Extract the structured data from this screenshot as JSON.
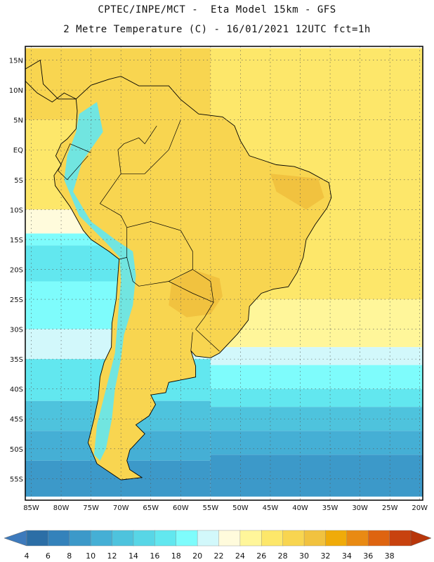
{
  "header": {
    "line1": "CPTEC/INPE/MCT -  Eta Model 15km - GFS",
    "line2": "2 Metre Temperature (C) - 16/01/2021 12UTC fct=1h"
  },
  "map": {
    "lat_labels": [
      "15N",
      "10N",
      "5N",
      "EQ",
      "5S",
      "10S",
      "15S",
      "20S",
      "25S",
      "30S",
      "35S",
      "40S",
      "45S",
      "50S",
      "55S"
    ],
    "lon_labels": [
      "85W",
      "80W",
      "75W",
      "70W",
      "65W",
      "60W",
      "55W",
      "50W",
      "45W",
      "40W",
      "35W",
      "30W",
      "25W",
      "20W"
    ],
    "lat_values": [
      15,
      10,
      5,
      0,
      -5,
      -10,
      -15,
      -20,
      -25,
      -30,
      -35,
      -40,
      -45,
      -50,
      -55
    ],
    "lon_values": [
      -85,
      -80,
      -75,
      -70,
      -65,
      -60,
      -55,
      -50,
      -45,
      -40,
      -35,
      -30,
      -25,
      -20
    ],
    "grid": "dotted",
    "ocean_bands": [
      {
        "from_lat": 17,
        "to_lat": 5,
        "temp": 28
      },
      {
        "from_lat": 5,
        "to_lat": -10,
        "temp": 26
      },
      {
        "from_lat": -10,
        "to_lat": -14,
        "temp": 22
      },
      {
        "from_lat": -14,
        "to_lat": -16,
        "temp": 18
      },
      {
        "from_lat": -16,
        "to_lat": -22,
        "temp": 16
      },
      {
        "from_lat": -22,
        "to_lat": -30,
        "temp": 18
      },
      {
        "from_lat": -30,
        "to_lat": -35,
        "temp": 20
      },
      {
        "from_lat": -35,
        "to_lat": -42,
        "temp": 16
      },
      {
        "from_lat": -42,
        "to_lat": -47,
        "temp": 12
      },
      {
        "from_lat": -47,
        "to_lat": -52,
        "temp": 10
      },
      {
        "from_lat": -52,
        "to_lat": -58,
        "temp": 8
      }
    ],
    "atlantic_bands": [
      {
        "from_lat": 17,
        "to_lat": -25,
        "temp": 26
      },
      {
        "from_lat": -25,
        "to_lat": -33,
        "temp": 24
      },
      {
        "from_lat": -33,
        "to_lat": -36,
        "temp": 20
      },
      {
        "from_lat": -36,
        "to_lat": -40,
        "temp": 18
      },
      {
        "from_lat": -40,
        "to_lat": -43,
        "temp": 16
      },
      {
        "from_lat": -43,
        "to_lat": -47,
        "temp": 12
      },
      {
        "from_lat": -47,
        "to_lat": -51,
        "temp": 10
      },
      {
        "from_lat": -51,
        "to_lat": -58,
        "temp": 8
      }
    ],
    "land_temp": 28,
    "hot_temp": 30,
    "andes_temp": 16
  },
  "colorbar": {
    "labels": [
      "4",
      "6",
      "8",
      "10",
      "12",
      "14",
      "16",
      "18",
      "20",
      "22",
      "24",
      "26",
      "28",
      "30",
      "32",
      "34",
      "36",
      "38"
    ],
    "colors": [
      "#2c6ea6",
      "#3482bb",
      "#3c99c9",
      "#45afd5",
      "#4ec3dd",
      "#58d6e6",
      "#62e7ef",
      "#7efcfc",
      "#d2f8fb",
      "#fffbdc",
      "#fff69a",
      "#fde76a",
      "#f8d550",
      "#f1c23f",
      "#f0ab09",
      "#e98a13",
      "#de6410",
      "#c8420e"
    ],
    "low_color": "#3d7abc",
    "high_color": "#b8360a"
  }
}
